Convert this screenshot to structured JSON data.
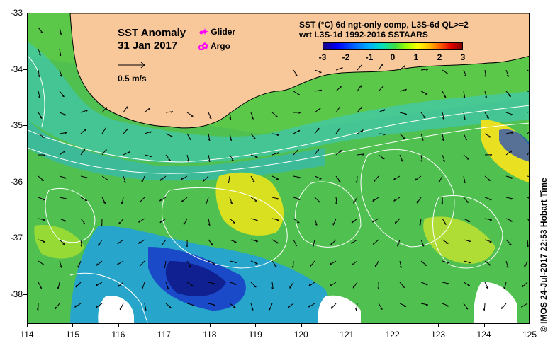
{
  "title": {
    "line1": "SST Anomaly",
    "line2": "31 Jan 2017"
  },
  "legend": {
    "glider_label": "Glider",
    "argo_label": "Argo",
    "glider_color": "#ff00ff",
    "argo_color": "#ff00ff"
  },
  "scale": {
    "label": "0.5 m/s"
  },
  "colorbar": {
    "title_line1": "SST (°C) 6d ngt-only comp, L3S-6d QL>=2",
    "title_line2": "wrt L3S-1d 1992-2016 SSTAARS",
    "ticks": [
      "-3",
      "-2",
      "-1",
      "0",
      "1",
      "2",
      "3"
    ]
  },
  "axes": {
    "y_ticks": [
      "-33",
      "-34",
      "-35",
      "-36",
      "-37",
      "-38"
    ],
    "x_ticks": [
      "114",
      "115",
      "116",
      "117",
      "118",
      "119",
      "120",
      "121",
      "122",
      "123",
      "124",
      "125"
    ]
  },
  "credit": "© IMOS 24-Jul-2017 22:53 Hobart Time",
  "colors": {
    "land": "#f8c89a",
    "ocean_base": "#5cc84a",
    "cool_anomaly": "#1860e8",
    "warm_anomaly": "#e0e020"
  }
}
